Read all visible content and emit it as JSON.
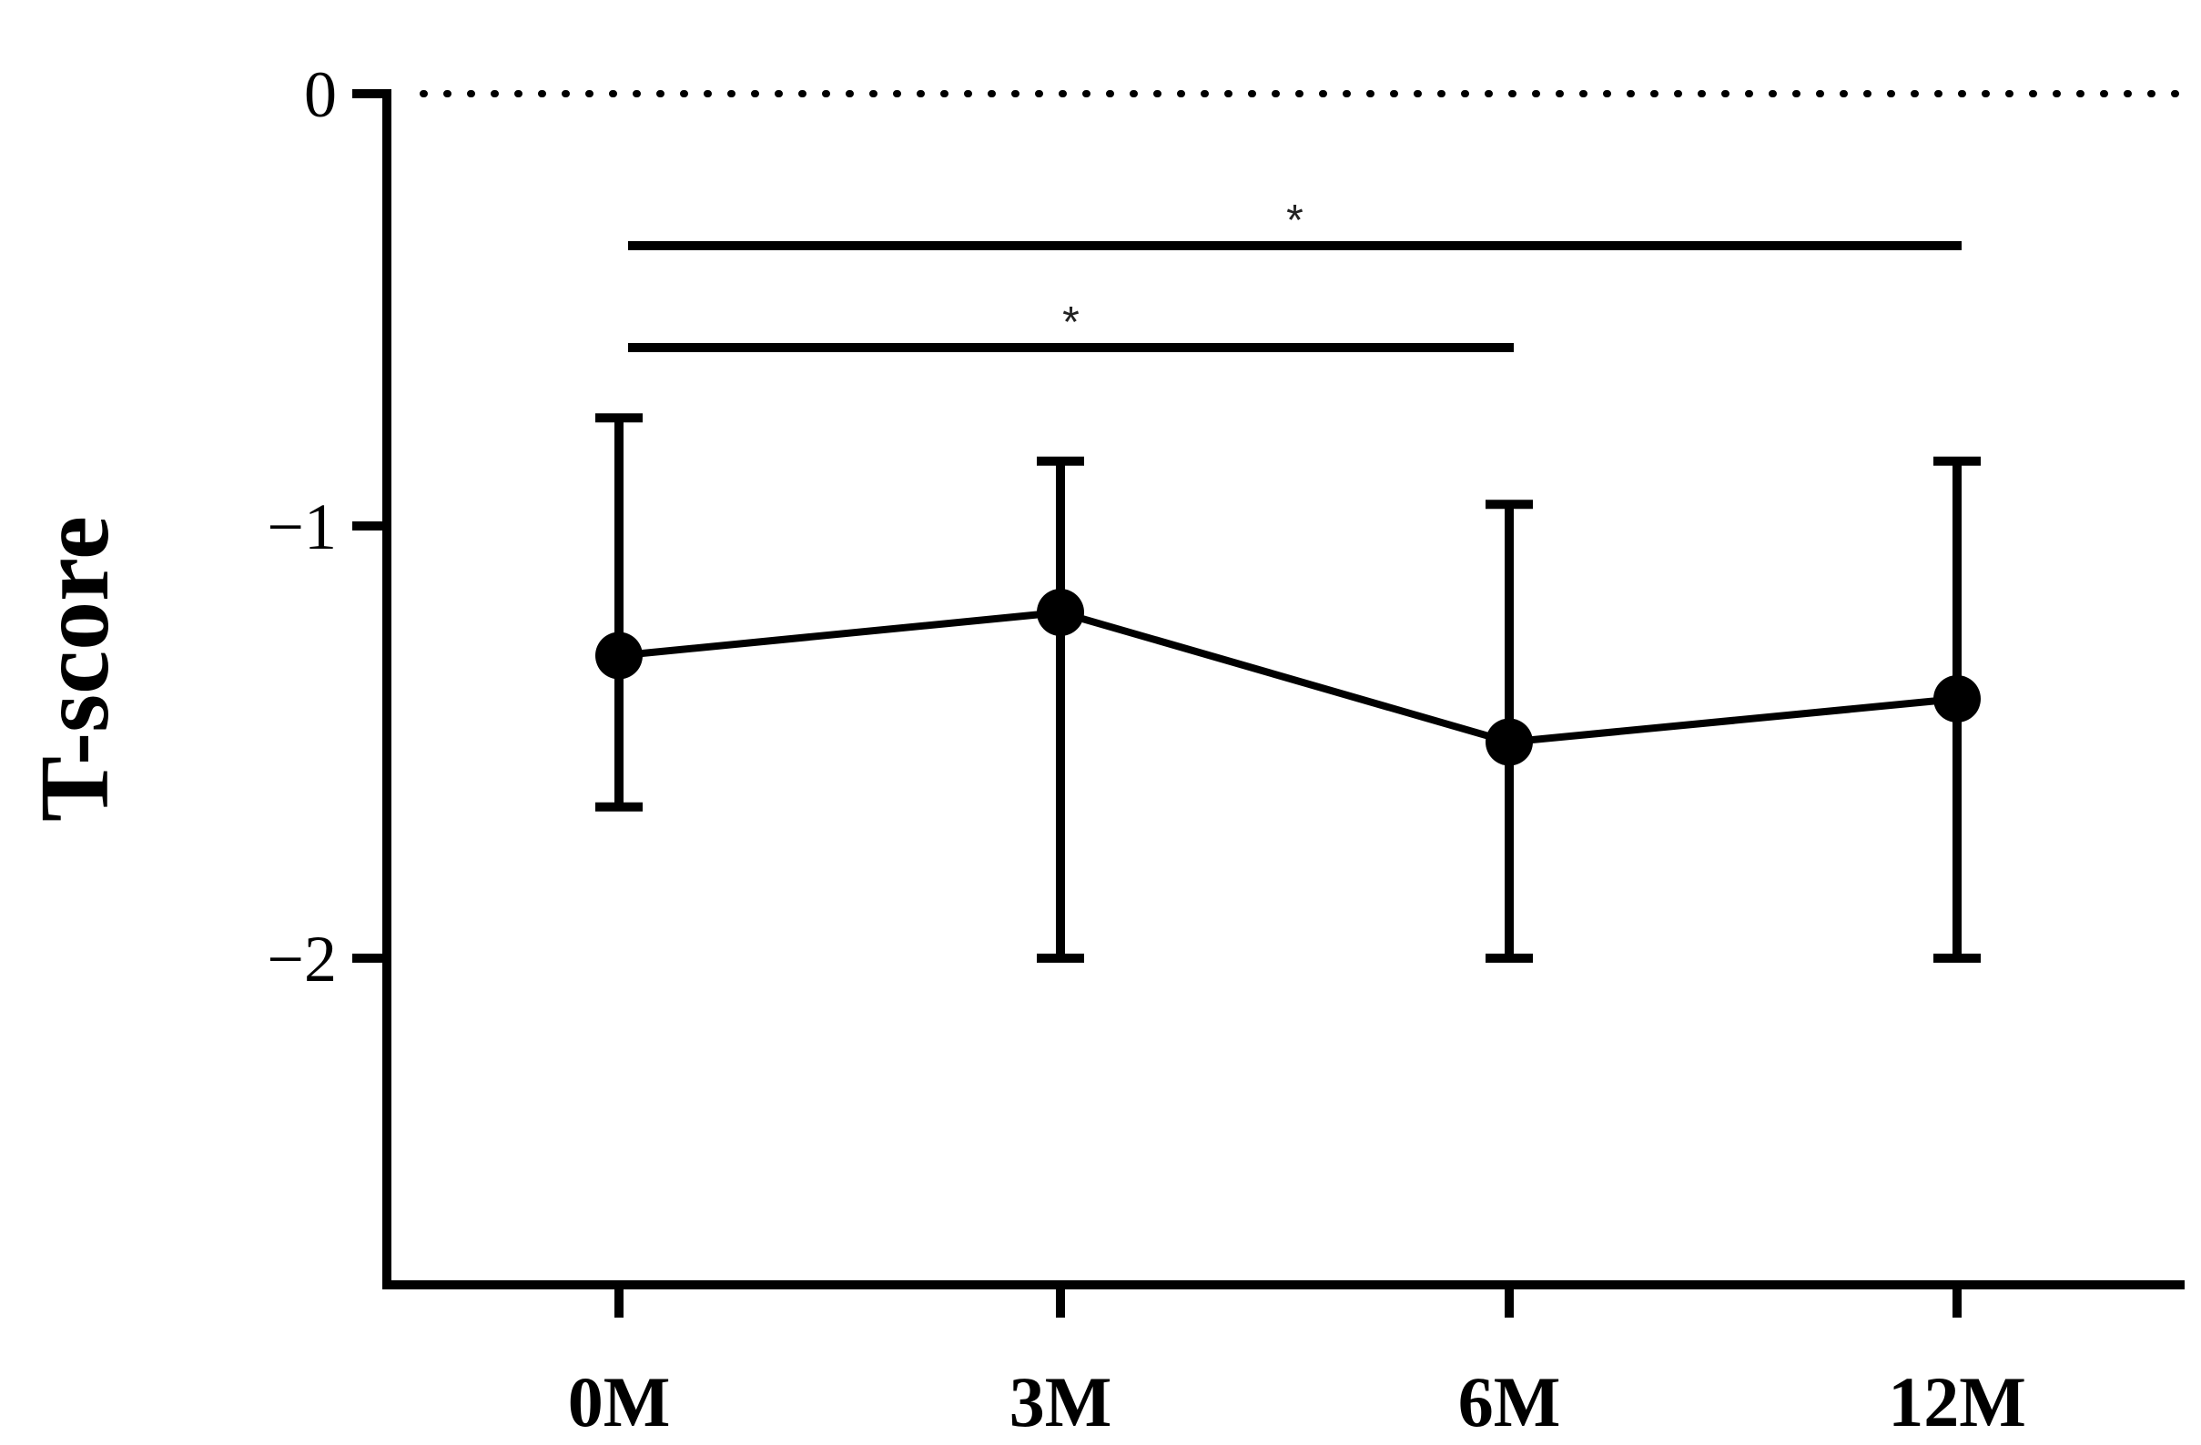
{
  "chart_data": {
    "type": "line",
    "ylabel": "T-score",
    "xlabel": "",
    "categories": [
      "0M",
      "3M",
      "6M",
      "12M"
    ],
    "yticks": [
      0,
      -1,
      -2
    ],
    "ytick_labels": [
      "0",
      "−1",
      "−2"
    ],
    "ylim": [
      -2.75,
      0
    ],
    "grid": false,
    "reference_line": {
      "y": 0,
      "style": "dotted"
    },
    "series": [
      {
        "values": [
          -1.3,
          -1.2,
          -1.5,
          -1.4
        ],
        "error_upper": [
          -0.75,
          -0.85,
          -0.95,
          -0.85
        ],
        "error_lower": [
          -1.65,
          -2.0,
          -2.0,
          -2.0
        ],
        "color": "#000000"
      }
    ],
    "annotations": [
      {
        "from": "0M",
        "to": "12M",
        "label": "*"
      },
      {
        "from": "0M",
        "to": "6M",
        "label": "*"
      }
    ]
  }
}
